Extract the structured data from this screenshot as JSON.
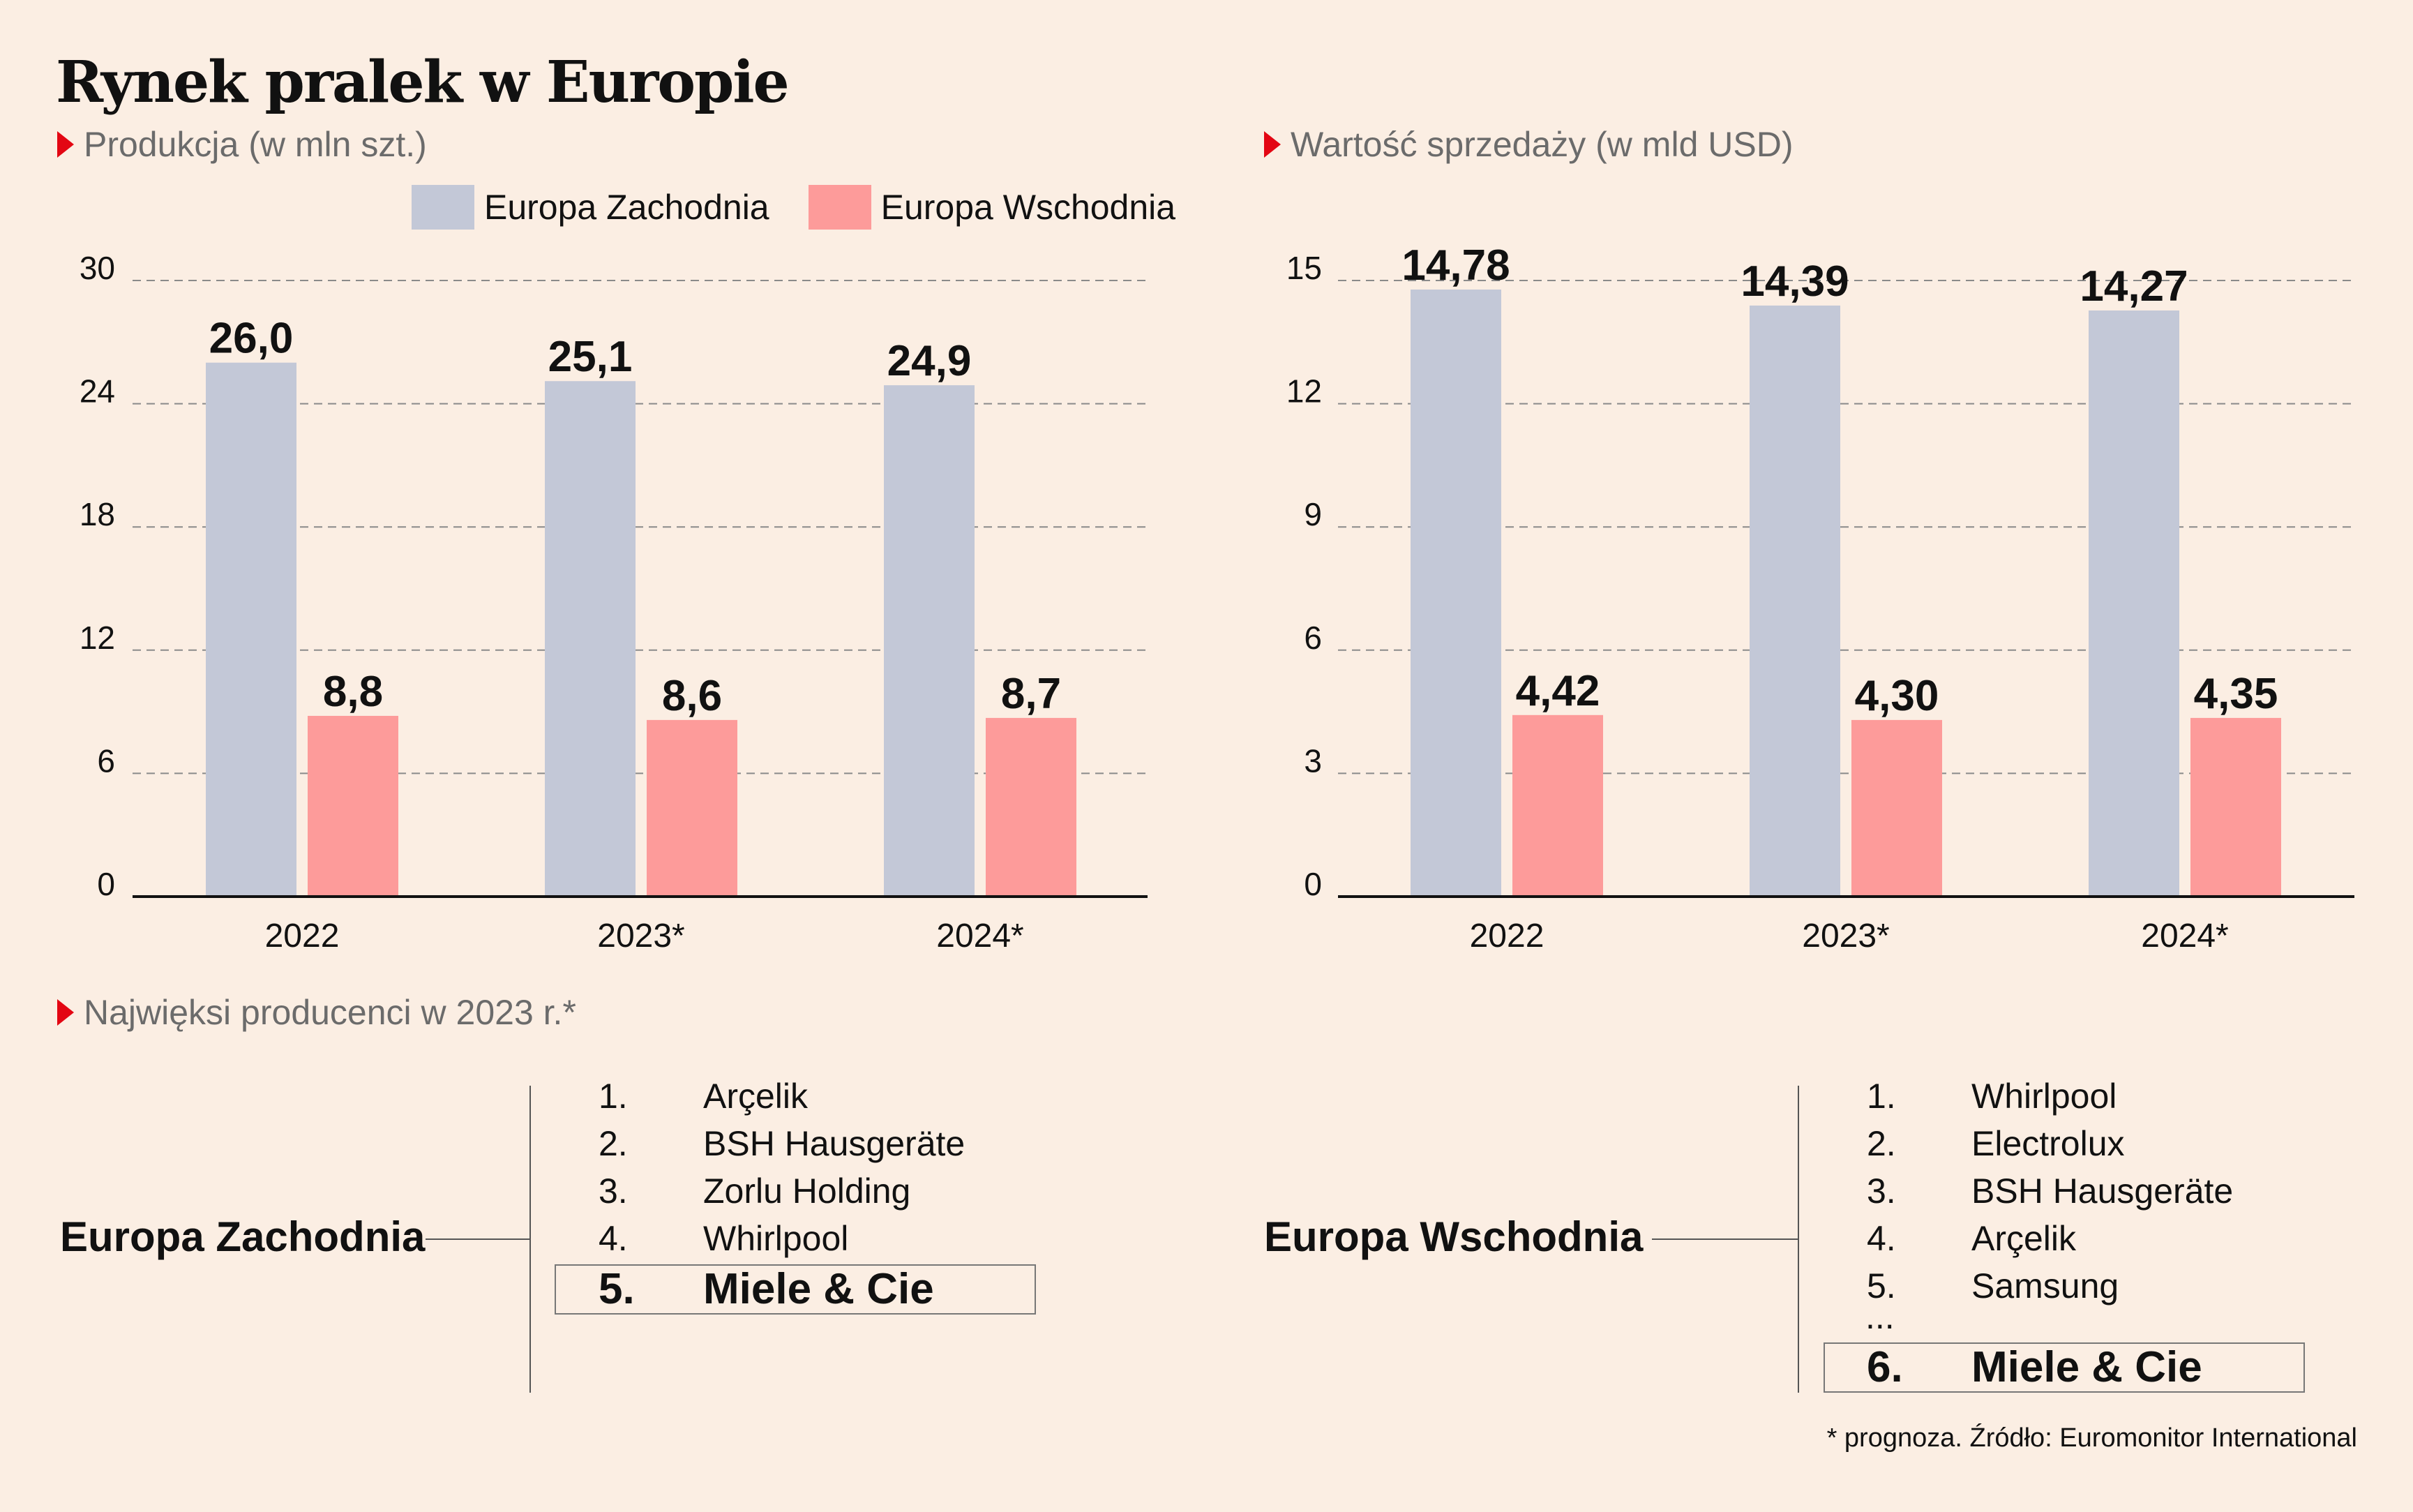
{
  "title": "Rynek pralek w Europie",
  "legend": {
    "west": "Europa Zachodnia",
    "east": "Europa Wschodnia",
    "west_color": "#c3c8d7",
    "east_color": "#fd9b9a"
  },
  "chart_data": [
    {
      "type": "bar",
      "title": "Produkcja (w mln szt.)",
      "categories": [
        "2022",
        "2023*",
        "2024*"
      ],
      "series": [
        {
          "name": "Europa Zachodnia",
          "values": [
            26.0,
            25.1,
            24.9
          ],
          "labels": [
            "26,0",
            "25,1",
            "24,9"
          ]
        },
        {
          "name": "Europa Wschodnia",
          "values": [
            8.8,
            8.6,
            8.7
          ],
          "labels": [
            "8,8",
            "8,6",
            "8,7"
          ]
        }
      ],
      "yticks": [
        "0",
        "6",
        "12",
        "18",
        "24",
        "30"
      ],
      "ylim": [
        0,
        30
      ],
      "grid": true,
      "legend_position": "top-right"
    },
    {
      "type": "bar",
      "title": "Wartość sprzedaży (w mld USD)",
      "categories": [
        "2022",
        "2023*",
        "2024*"
      ],
      "series": [
        {
          "name": "Europa Zachodnia",
          "values": [
            14.78,
            14.39,
            14.27
          ],
          "labels": [
            "14,78",
            "14,39",
            "14,27"
          ]
        },
        {
          "name": "Europa Wschodnia",
          "values": [
            4.42,
            4.3,
            4.35
          ],
          "labels": [
            "4,42",
            "4,30",
            "4,35"
          ]
        }
      ],
      "yticks": [
        "0",
        "3",
        "6",
        "9",
        "12",
        "15"
      ],
      "ylim": [
        0,
        15
      ],
      "grid": true
    }
  ],
  "rankings": {
    "heading": "Najwięksi producenci w 2023 r.*",
    "west": {
      "label": "Europa Zachodnia",
      "items": [
        {
          "num": "1.",
          "name": "Arçelik"
        },
        {
          "num": "2.",
          "name": "BSH Hausgeräte"
        },
        {
          "num": "3.",
          "name": "Zorlu Holding"
        },
        {
          "num": "4.",
          "name": "Whirlpool"
        }
      ],
      "highlight": {
        "num": "5.",
        "name": "Miele & Cie"
      }
    },
    "east": {
      "label": "Europa Wschodnia",
      "items": [
        {
          "num": "1.",
          "name": "Whirlpool"
        },
        {
          "num": "2.",
          "name": "Electrolux"
        },
        {
          "num": "3.",
          "name": "BSH Hausgeräte"
        },
        {
          "num": "4.",
          "name": "Arçelik"
        },
        {
          "num": "5.",
          "name": "Samsung"
        }
      ],
      "ellipsis": "...",
      "highlight": {
        "num": "6.",
        "name": "Miele & Cie"
      }
    }
  },
  "footnote": "* prognoza. Źródło: Euromonitor International"
}
